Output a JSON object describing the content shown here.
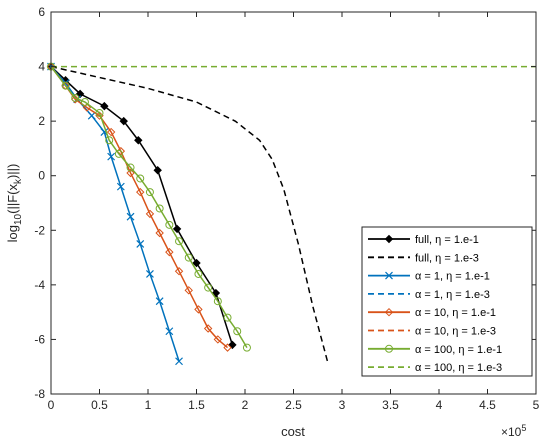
{
  "chart_data": {
    "type": "line",
    "xlabel": "cost",
    "ylabel": "log10(||F(x_k)||)",
    "ylabel_parts": {
      "pre": "log",
      "sub1": "10",
      "mid": "(||F(x",
      "sub2": "k",
      "post": ")||)"
    },
    "x_exponent": {
      "base": "×10",
      "power": "5"
    },
    "xlim": [
      0,
      5
    ],
    "ylim": [
      -8,
      6
    ],
    "x_ticks": [
      0,
      0.5,
      1,
      1.5,
      2,
      2.5,
      3,
      3.5,
      4,
      4.5,
      5
    ],
    "x_tick_labels": [
      "0",
      "0.5",
      "1",
      "1.5",
      "2",
      "2.5",
      "3",
      "3.5",
      "4",
      "4.5",
      "5"
    ],
    "y_ticks": [
      -8,
      -6,
      -4,
      -2,
      0,
      2,
      4,
      6
    ],
    "y_tick_labels": [
      "-8",
      "-6",
      "-4",
      "-2",
      "0",
      "2",
      "4",
      "6"
    ],
    "grid": false,
    "legend_placement": "bottom-right",
    "series": [
      {
        "name": "full, η = 1.e-1",
        "color": "#000000",
        "dash": "solid",
        "marker": "diamond-filled",
        "x": [
          0,
          0.15,
          0.3,
          0.55,
          0.75,
          0.9,
          1.1,
          1.3,
          1.5,
          1.7,
          1.87
        ],
        "y": [
          4,
          3.5,
          3.0,
          2.55,
          2.0,
          1.3,
          0.2,
          -1.95,
          -3.2,
          -4.3,
          -6.2
        ]
      },
      {
        "name": "full, η = 1.e-3",
        "color": "#000000",
        "dash": "dashed",
        "marker": "none",
        "x": [
          0,
          0.5,
          1.0,
          1.5,
          1.9,
          2.15,
          2.28,
          2.4,
          2.55,
          2.7,
          2.85
        ],
        "y": [
          4,
          3.6,
          3.2,
          2.7,
          2.0,
          1.3,
          0.6,
          -0.5,
          -2.5,
          -4.8,
          -6.8
        ]
      },
      {
        "name": "α = 1, η = 1.e-1",
        "color": "#0072bd",
        "dash": "solid",
        "marker": "x",
        "x": [
          0,
          0.15,
          0.27,
          0.42,
          0.55,
          0.62,
          0.72,
          0.82,
          0.92,
          1.02,
          1.12,
          1.22,
          1.32
        ],
        "y": [
          4,
          3.4,
          2.8,
          2.2,
          1.6,
          0.7,
          -0.4,
          -1.5,
          -2.5,
          -3.6,
          -4.6,
          -5.7,
          -6.8
        ]
      },
      {
        "name": "α = 1, η = 1.e-3",
        "color": "#0072bd",
        "dash": "dashed",
        "marker": "none",
        "x": [],
        "y": []
      },
      {
        "name": "α = 10, η = 1.e-1",
        "color": "#d95319",
        "dash": "solid",
        "marker": "diamond-open",
        "x": [
          0,
          0.15,
          0.25,
          0.37,
          0.5,
          0.62,
          0.72,
          0.82,
          0.92,
          1.02,
          1.12,
          1.22,
          1.32,
          1.42,
          1.52,
          1.62,
          1.72,
          1.82
        ],
        "y": [
          4,
          3.3,
          2.8,
          2.5,
          2.2,
          1.6,
          0.9,
          0.1,
          -0.6,
          -1.4,
          -2.1,
          -2.8,
          -3.5,
          -4.2,
          -4.9,
          -5.6,
          -6.0,
          -6.3
        ]
      },
      {
        "name": "α = 10, η = 1.e-3",
        "color": "#d95319",
        "dash": "dashed",
        "marker": "none",
        "x": [],
        "y": []
      },
      {
        "name": "α = 100, η = 1.e-1",
        "color": "#77ac30",
        "dash": "solid",
        "marker": "circle-open",
        "x": [
          0,
          0.15,
          0.25,
          0.35,
          0.5,
          0.6,
          0.7,
          0.82,
          0.92,
          1.02,
          1.12,
          1.22,
          1.32,
          1.42,
          1.52,
          1.62,
          1.72,
          1.82,
          1.92,
          2.02
        ],
        "y": [
          4,
          3.3,
          2.85,
          2.7,
          2.3,
          1.3,
          0.8,
          0.3,
          -0.1,
          -0.6,
          -1.2,
          -1.8,
          -2.4,
          -3.0,
          -3.6,
          -4.1,
          -4.6,
          -5.2,
          -5.7,
          -6.3
        ]
      },
      {
        "name": "α = 100, η = 1.e-3",
        "color": "#77ac30",
        "dash": "dashed",
        "marker": "none",
        "x": [
          0,
          5
        ],
        "y": [
          4,
          4
        ]
      }
    ]
  }
}
